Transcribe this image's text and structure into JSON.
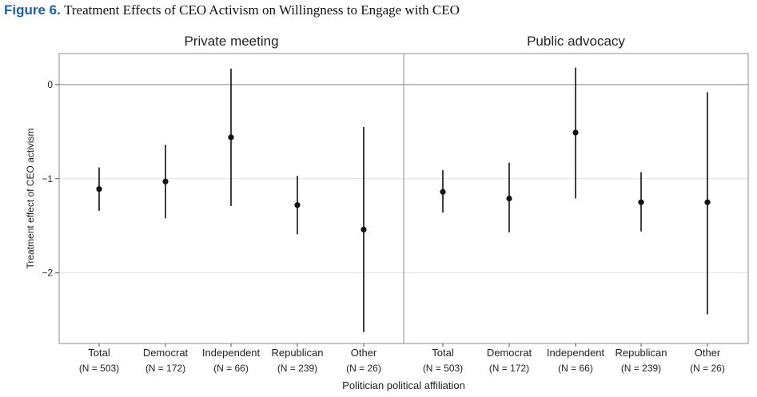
{
  "figure": {
    "label": "Figure 6.",
    "title": "Treatment Effects of CEO Activism on Willingness to Engage with CEO"
  },
  "chart_data": {
    "type": "scatter",
    "subtype": "point estimates with confidence intervals, faceted",
    "ylabel": "Treatment effect of CEO activism",
    "xlabel": "Politician political affiliation",
    "ylim": [
      -2.75,
      0.33
    ],
    "yticks": [
      0,
      -1,
      -2
    ],
    "ytick_labels": [
      "0",
      "−1",
      "−2"
    ],
    "reference_line_y": 0,
    "grid": true,
    "categories": [
      "Total",
      "Democrat",
      "Independent",
      "Republican",
      "Other"
    ],
    "category_n": [
      "(N = 503)",
      "(N = 172)",
      "(N = 66)",
      "(N = 239)",
      "(N = 26)"
    ],
    "panels": [
      {
        "title": "Private meeting",
        "estimates": [
          -1.11,
          -1.03,
          -0.56,
          -1.28,
          -1.54
        ],
        "ci_low": [
          -1.34,
          -1.42,
          -1.29,
          -1.59,
          -2.63
        ],
        "ci_high": [
          -0.88,
          -0.64,
          0.17,
          -0.97,
          -0.45
        ]
      },
      {
        "title": "Public advocacy",
        "estimates": [
          -1.14,
          -1.21,
          -0.51,
          -1.25,
          -1.25
        ],
        "ci_low": [
          -1.36,
          -1.57,
          -1.21,
          -1.56,
          -2.44
        ],
        "ci_high": [
          -0.91,
          -0.83,
          0.18,
          -0.93,
          -0.08
        ]
      }
    ]
  }
}
